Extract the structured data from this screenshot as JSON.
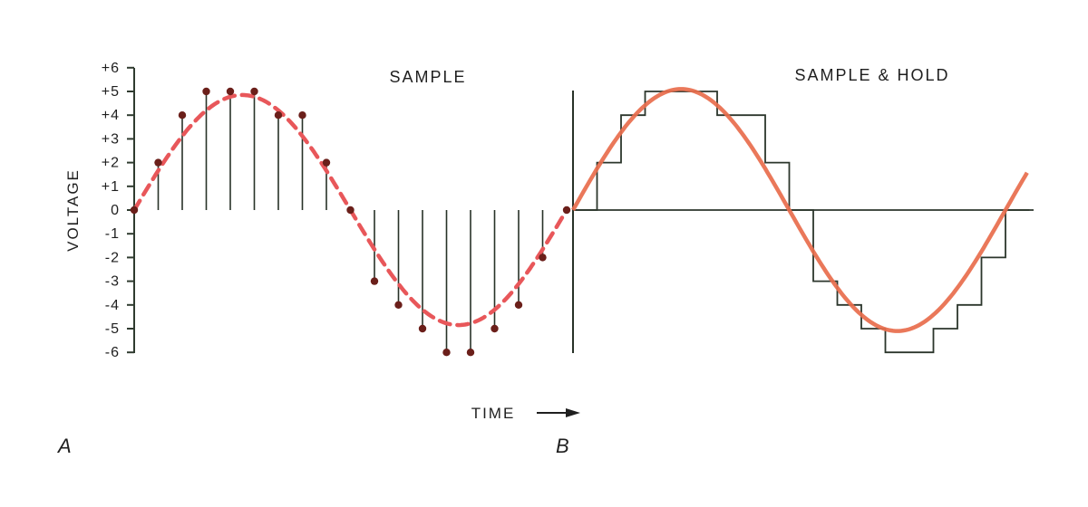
{
  "panel_a": {
    "title": "SAMPLE",
    "letter": "A"
  },
  "panel_b": {
    "title": "SAMPLE & HOLD",
    "letter": "B"
  },
  "axes": {
    "y_label": "VOLTAGE",
    "x_label": "TIME",
    "y_ticks": [
      "+6",
      "+5",
      "+4",
      "+3",
      "+2",
      "+1",
      "0",
      "-1",
      "-2",
      "-3",
      "-4",
      "-5",
      "-6"
    ]
  },
  "colors": {
    "curve_a": "#e8575a",
    "curve_b": "#e86c4c",
    "stem": "#283228",
    "dot": "#6b1f1a"
  },
  "chart_data": [
    {
      "type": "scatter",
      "title": "SAMPLE",
      "ylabel": "VOLTAGE",
      "xlabel": "TIME",
      "ylim": [
        -6,
        6
      ],
      "x": [
        0,
        1,
        2,
        3,
        4,
        5,
        6,
        7,
        8,
        9,
        10,
        11,
        12,
        13,
        14,
        15,
        16,
        17,
        18
      ],
      "series": [
        {
          "values": [
            0,
            2,
            4,
            5,
            5,
            5,
            4,
            4,
            2,
            0,
            -3,
            -4,
            -5,
            -6,
            -6,
            -5,
            -4,
            -2,
            0
          ]
        }
      ]
    },
    {
      "type": "line",
      "title": "SAMPLE & HOLD",
      "ylabel": "VOLTAGE",
      "xlabel": "TIME",
      "ylim": [
        -6,
        6
      ],
      "x": [
        0,
        1,
        2,
        3,
        4,
        5,
        6,
        7,
        8,
        9,
        10,
        11,
        12,
        13,
        14,
        15,
        16,
        17,
        18
      ],
      "series": [
        {
          "values": [
            0,
            2,
            4,
            5,
            5,
            5,
            4,
            4,
            2,
            0,
            -3,
            -4,
            -5,
            -6,
            -6,
            -5,
            -4,
            -2,
            0
          ]
        }
      ]
    }
  ]
}
